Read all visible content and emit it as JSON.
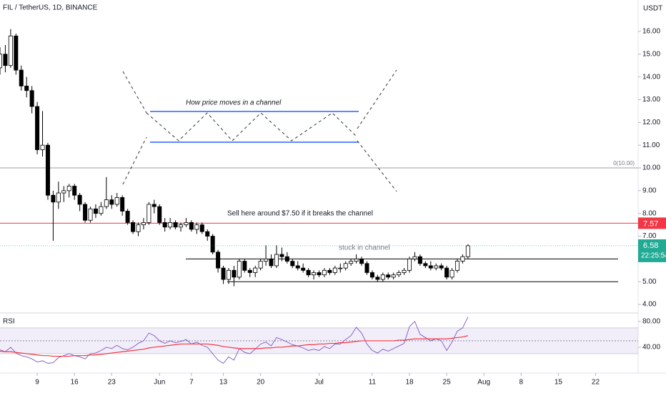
{
  "chart_data": [
    {
      "type": "candlestick",
      "title": "FIL / TetherUS, 1D, BINANCE",
      "unit": "USDT",
      "countdown": "22:25:54",
      "x": [
        "May 2",
        "May 3",
        "May 4",
        "May 5",
        "May 6",
        "May 7",
        "May 8",
        "May 9",
        "May 10",
        "May 11",
        "May 12",
        "May 13",
        "May 14",
        "May 15",
        "May 16",
        "May 17",
        "May 18",
        "May 19",
        "May 20",
        "May 21",
        "May 22",
        "May 23",
        "May 24",
        "May 25",
        "May 26",
        "May 27",
        "May 28",
        "May 29",
        "May 30",
        "May 31",
        "Jun 1",
        "Jun 2",
        "Jun 3",
        "Jun 4",
        "Jun 5",
        "Jun 6",
        "Jun 7",
        "Jun 8",
        "Jun 9",
        "Jun 10",
        "Jun 11",
        "Jun 12",
        "Jun 13",
        "Jun 14",
        "Jun 15",
        "Jun 16",
        "Jun 17",
        "Jun 18",
        "Jun 19",
        "Jun 20",
        "Jun 21",
        "Jun 22",
        "Jun 23",
        "Jun 24",
        "Jun 25",
        "Jun 26",
        "Jun 27",
        "Jun 28",
        "Jun 29",
        "Jun 30",
        "Jul 1",
        "Jul 2",
        "Jul 3",
        "Jul 4",
        "Jul 5",
        "Jul 6",
        "Jul 7",
        "Jul 8",
        "Jul 9",
        "Jul 10",
        "Jul 11",
        "Jul 12",
        "Jul 13",
        "Jul 14",
        "Jul 15",
        "Jul 16",
        "Jul 17",
        "Jul 18",
        "Jul 19",
        "Jul 20",
        "Jul 21",
        "Jul 22",
        "Jul 23",
        "Jul 24",
        "Jul 25",
        "Jul 26",
        "Jul 27",
        "Jul 28",
        "Jul 29"
      ],
      "open": [
        14.4,
        15.0,
        14.5,
        15.8,
        14.3,
        13.6,
        13.4,
        12.7,
        10.8,
        11.0,
        8.8,
        8.5,
        8.9,
        9.0,
        9.2,
        8.8,
        8.4,
        7.7,
        8.2,
        8.0,
        8.3,
        8.6,
        8.4,
        8.7,
        8.1,
        7.6,
        7.2,
        7.5,
        7.6,
        8.4,
        8.3,
        7.6,
        7.4,
        7.6,
        7.4,
        7.5,
        7.6,
        7.3,
        7.5,
        7.2,
        7.0,
        6.3,
        5.6,
        5.1,
        5.5,
        5.2,
        5.9,
        5.5,
        5.4,
        5.6,
        5.9,
        6.0,
        5.7,
        6.2,
        6.1,
        5.9,
        5.7,
        5.6,
        5.5,
        5.3,
        5.4,
        5.3,
        5.5,
        5.4,
        5.6,
        5.6,
        5.8,
        5.9,
        6.0,
        5.8,
        5.4,
        5.2,
        5.1,
        5.3,
        5.2,
        5.3,
        5.4,
        5.5,
        6.0,
        6.1,
        5.8,
        5.7,
        5.6,
        5.7,
        5.6,
        5.2,
        5.5,
        5.9,
        6.1
      ],
      "high": [
        15.3,
        15.4,
        16.1,
        15.9,
        14.5,
        14.0,
        13.6,
        12.9,
        12.5,
        11.1,
        9.0,
        9.4,
        9.2,
        9.3,
        9.3,
        8.9,
        8.5,
        8.3,
        8.4,
        8.5,
        9.6,
        8.8,
        8.9,
        8.8,
        8.2,
        7.7,
        7.6,
        7.8,
        8.5,
        8.6,
        8.4,
        7.8,
        7.8,
        7.7,
        7.6,
        7.8,
        7.7,
        7.6,
        7.6,
        7.3,
        7.1,
        6.4,
        5.7,
        5.6,
        5.7,
        6.0,
        6.0,
        5.6,
        5.7,
        6.0,
        6.6,
        6.2,
        6.6,
        6.5,
        6.3,
        6.0,
        5.9,
        5.8,
        5.6,
        5.5,
        5.5,
        5.6,
        5.6,
        5.7,
        5.8,
        5.9,
        6.0,
        6.2,
        6.1,
        5.9,
        5.5,
        5.3,
        5.4,
        5.4,
        5.4,
        5.5,
        5.6,
        6.1,
        6.3,
        6.2,
        5.9,
        5.9,
        5.8,
        5.8,
        5.7,
        5.6,
        6.0,
        6.2,
        6.65
      ],
      "low": [
        14.1,
        14.2,
        14.4,
        14.1,
        13.4,
        13.1,
        12.4,
        10.6,
        10.5,
        8.6,
        6.8,
        8.2,
        8.5,
        8.7,
        8.6,
        8.1,
        7.6,
        7.6,
        7.8,
        7.9,
        8.2,
        8.2,
        8.3,
        7.9,
        7.5,
        7.1,
        7.0,
        7.3,
        7.5,
        8.0,
        7.5,
        7.2,
        7.3,
        7.3,
        7.2,
        7.4,
        7.2,
        7.1,
        7.1,
        6.8,
        6.2,
        5.4,
        4.9,
        4.9,
        4.8,
        5.1,
        5.4,
        5.2,
        5.2,
        5.5,
        5.7,
        5.6,
        5.6,
        5.9,
        5.8,
        5.6,
        5.5,
        5.4,
        5.2,
        5.1,
        5.2,
        5.2,
        5.3,
        5.3,
        5.4,
        5.5,
        5.7,
        5.8,
        5.7,
        5.3,
        5.1,
        5.0,
        5.0,
        5.1,
        5.1,
        5.2,
        5.3,
        5.4,
        5.9,
        5.7,
        5.6,
        5.5,
        5.5,
        5.5,
        5.1,
        5.1,
        5.4,
        5.8,
        6.0
      ],
      "close": [
        15.0,
        14.5,
        15.8,
        14.3,
        13.6,
        13.4,
        12.7,
        10.8,
        11.0,
        8.8,
        8.5,
        8.9,
        9.0,
        9.2,
        8.8,
        8.4,
        7.7,
        8.2,
        8.0,
        8.3,
        8.6,
        8.4,
        8.7,
        8.1,
        7.6,
        7.2,
        7.5,
        7.6,
        8.4,
        8.3,
        7.6,
        7.4,
        7.6,
        7.4,
        7.5,
        7.6,
        7.3,
        7.5,
        7.2,
        7.0,
        6.3,
        5.6,
        5.1,
        5.5,
        5.2,
        5.9,
        5.5,
        5.4,
        5.6,
        5.9,
        6.0,
        5.7,
        6.2,
        6.1,
        5.9,
        5.7,
        5.6,
        5.5,
        5.3,
        5.4,
        5.3,
        5.5,
        5.4,
        5.6,
        5.6,
        5.8,
        5.9,
        6.0,
        5.8,
        5.4,
        5.2,
        5.1,
        5.3,
        5.2,
        5.3,
        5.4,
        5.5,
        6.0,
        6.1,
        5.8,
        5.7,
        5.6,
        5.7,
        5.6,
        5.2,
        5.5,
        5.9,
        6.1,
        6.58
      ],
      "up_color": "#ffffff",
      "down_color": "#000000",
      "xlim": [
        "May 2",
        "Aug 30"
      ],
      "xticks": [
        {
          "value": "May 9",
          "label": "9"
        },
        {
          "value": "May 16",
          "label": "16"
        },
        {
          "value": "May 23",
          "label": "23"
        },
        {
          "value": "Jun 1",
          "label": "Jun"
        },
        {
          "value": "Jun 7",
          "label": "7"
        },
        {
          "value": "Jun 13",
          "label": "13"
        },
        {
          "value": "Jun 20",
          "label": "20"
        },
        {
          "value": "Jul 1",
          "label": "Jul"
        },
        {
          "value": "Jul 11",
          "label": "11"
        },
        {
          "value": "Jul 18",
          "label": "18"
        },
        {
          "value": "Jul 25",
          "label": "25"
        },
        {
          "value": "Aug 1",
          "label": "Aug"
        },
        {
          "value": "Aug 8",
          "label": "8"
        },
        {
          "value": "Aug 15",
          "label": "15"
        },
        {
          "value": "Aug 22",
          "label": "22"
        }
      ],
      "ylim": [
        3.72,
        17.38
      ],
      "yticks": [
        {
          "value": 4,
          "label": "4.00"
        },
        {
          "value": 5,
          "label": "5.00"
        },
        {
          "value": 6,
          "label": "6.00"
        },
        {
          "value": 7,
          "label": "7.00"
        },
        {
          "value": 8,
          "label": "8.00"
        },
        {
          "value": 9,
          "label": "9.00"
        },
        {
          "value": 10,
          "label": "10.00"
        },
        {
          "value": 11,
          "label": "11.00"
        },
        {
          "value": 12,
          "label": "12.00"
        },
        {
          "value": 13,
          "label": "13.00"
        },
        {
          "value": 14,
          "label": "14.00"
        },
        {
          "value": 15,
          "label": "15.00"
        },
        {
          "value": 16,
          "label": "16.00"
        }
      ],
      "last_color": "#22ab94",
      "levels": [
        {
          "value": 7.57,
          "color": "#f23645"
        },
        {
          "value": 10,
          "label": "0(10.00)",
          "color": "#9e9e9e"
        },
        {
          "value": 6.0,
          "color": "#000000"
        },
        {
          "value": 5.0,
          "color": "#000000"
        }
      ],
      "annotations": [
        "How price moves in a channel",
        "Sell here around $7.50 if it breaks the channel",
        "stuck in channel"
      ]
    },
    {
      "type": "line",
      "title": "RSI",
      "ylim": [
        10,
        91
      ],
      "yticks": [
        {
          "value": 80,
          "label": "80.00"
        },
        {
          "value": 40,
          "label": "40.00"
        }
      ],
      "band": [
        30,
        70
      ],
      "band_color": "#7e57c2",
      "midline": 50,
      "series": [
        {
          "color": "#7e57c2",
          "values": [
            36,
            33,
            40,
            31,
            27,
            25,
            22,
            17,
            19,
            15,
            16,
            24,
            27,
            30,
            27,
            25,
            22,
            30,
            31,
            35,
            40,
            38,
            43,
            38,
            36,
            40,
            46,
            50,
            62,
            58,
            50,
            46,
            50,
            47,
            49,
            52,
            45,
            48,
            43,
            40,
            30,
            20,
            15,
            25,
            20,
            38,
            32,
            30,
            37,
            45,
            48,
            42,
            55,
            52,
            48,
            44,
            42,
            39,
            35,
            37,
            35,
            41,
            38,
            45,
            45,
            52,
            58,
            71,
            62,
            45,
            35,
            31,
            37,
            34,
            38,
            42,
            46,
            72,
            80,
            60,
            55,
            50,
            53,
            50,
            35,
            48,
            65,
            70,
            87
          ]
        },
        {
          "color": "#f23645",
          "values": [
            34,
            33,
            33,
            32,
            31,
            30,
            29,
            28,
            27,
            27,
            26,
            26,
            26,
            26,
            27,
            27,
            27,
            28,
            28,
            29,
            30,
            31,
            32,
            33,
            34,
            35,
            36,
            37,
            39,
            40,
            41,
            42,
            43,
            44,
            45,
            45,
            45,
            45,
            45,
            45,
            44,
            43,
            41,
            40,
            39,
            38,
            38,
            38,
            38,
            38,
            39,
            39,
            40,
            40,
            41,
            42,
            42,
            43,
            44,
            44,
            45,
            45,
            46,
            46,
            47,
            47,
            48,
            49,
            50,
            50,
            50,
            50,
            50,
            50,
            50,
            51,
            51,
            52,
            53,
            53,
            53,
            53,
            53,
            53,
            53,
            54,
            55,
            56,
            58
          ]
        }
      ]
    }
  ]
}
